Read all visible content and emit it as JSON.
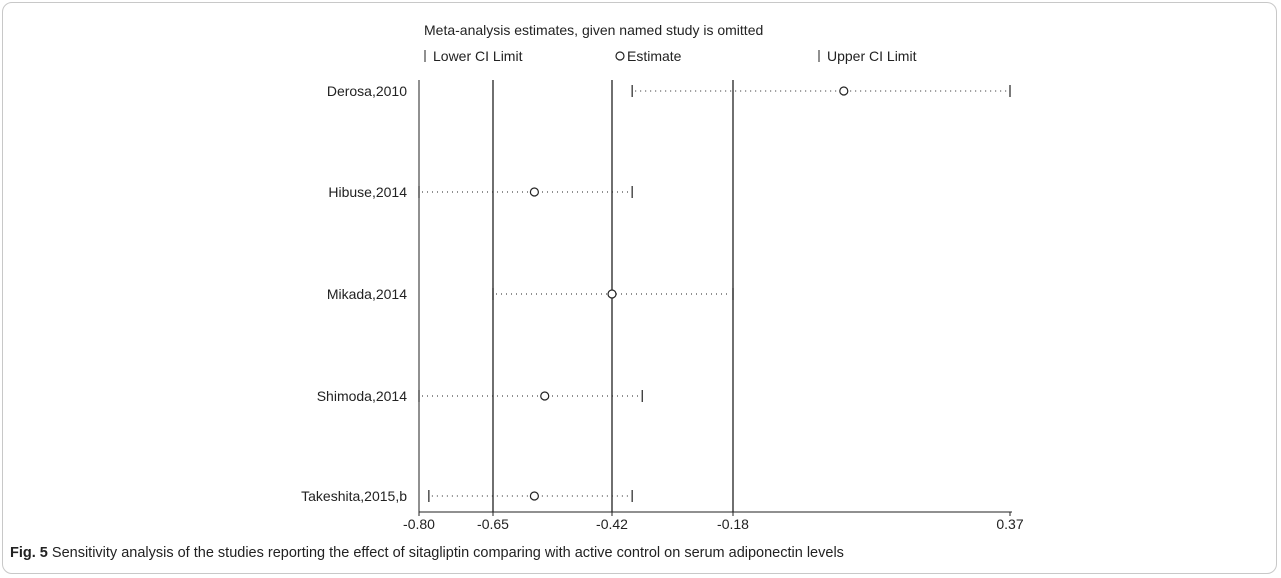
{
  "chart_data": {
    "type": "scatter",
    "title": "Meta-analysis estimates, given named study is omitted",
    "legend": {
      "placement": "top",
      "lower": "Lower CI Limit",
      "estimate": "Estimate",
      "upper": "Upper CI Limit"
    },
    "x_ticks": [
      -0.8,
      -0.65,
      -0.42,
      -0.18,
      0.37
    ],
    "x_tick_labels": [
      "-0.80",
      "-0.65",
      "-0.42",
      "-0.18",
      "0.37"
    ],
    "reference_lines": [
      -0.65,
      -0.42,
      -0.18
    ],
    "xlim": [
      -0.8,
      0.37
    ],
    "studies": [
      {
        "name": "Derosa,2010",
        "lower": -0.38,
        "estimate": 0.04,
        "upper": 0.37
      },
      {
        "name": "Hibuse,2014",
        "lower": -0.8,
        "estimate": -0.57,
        "upper": -0.38
      },
      {
        "name": "Mikada,2014",
        "lower": -0.65,
        "estimate": -0.42,
        "upper": -0.18
      },
      {
        "name": "Shimoda,2014",
        "lower": -0.8,
        "estimate": -0.55,
        "upper": -0.36
      },
      {
        "name": "Takeshita,2015,b",
        "lower": -0.78,
        "estimate": -0.57,
        "upper": -0.38
      }
    ]
  },
  "caption": {
    "label": "Fig. 5",
    "text": " Sensitivity analysis of the studies reporting the effect of sitagliptin comparing with active control on serum adiponectin levels"
  },
  "colors": {
    "ink": "#222222",
    "frame": "#c8c8c8"
  }
}
